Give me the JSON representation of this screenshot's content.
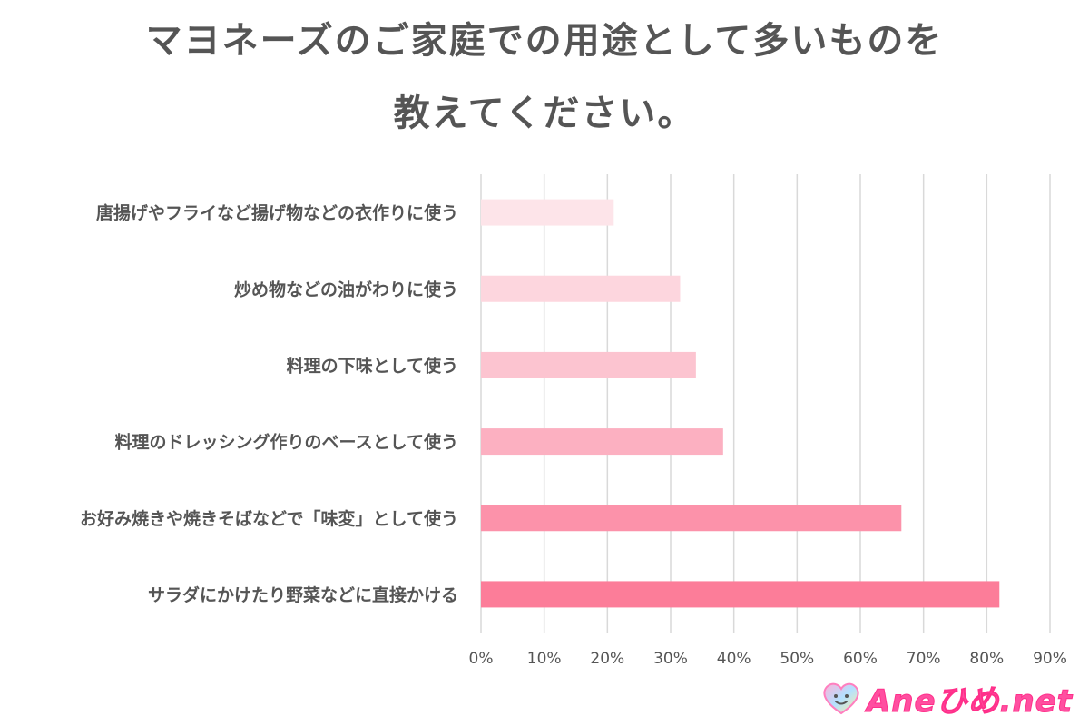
{
  "title": {
    "line1": "マヨネーズのご家庭での用途として多いものを",
    "line2": "教えてください。"
  },
  "chart_data": {
    "type": "bar",
    "orientation": "horizontal",
    "categories": [
      "唐揚げやフライなど揚げ物などの衣作りに使う",
      "炒め物などの油がわりに使う",
      "料理の下味として使う",
      "料理のドレッシング作りのベースとして使う",
      "お好み焼きや焼きそばなどで「味変」として使う",
      "サラダにかけたり野菜などに直接かける"
    ],
    "values": [
      21,
      31.5,
      34,
      38.3,
      66.5,
      82
    ],
    "bar_colors": [
      "#fde4e9",
      "#fdd6de",
      "#fcc4d0",
      "#fcb0c1",
      "#fc92aa",
      "#fc7d99"
    ],
    "xlim": [
      0,
      90
    ],
    "xticks": [
      "0%",
      "10%",
      "20%",
      "30%",
      "40%",
      "50%",
      "60%",
      "70%",
      "80%",
      "90%"
    ],
    "grid": true,
    "gridline_color": "#d9d9d9"
  },
  "logo": {
    "text": "Aneひめ.net",
    "icon": "heart-face-icon"
  }
}
